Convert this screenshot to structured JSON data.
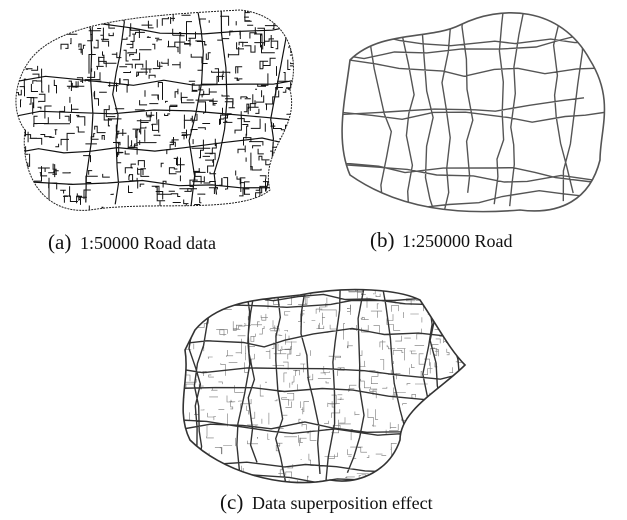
{
  "panels": [
    {
      "tag": "(a)",
      "caption": "1:50000 Road data"
    },
    {
      "tag": "(b)",
      "caption": "1:250000 Road"
    },
    {
      "tag": "(c)",
      "caption": "Data superposition effect"
    }
  ]
}
